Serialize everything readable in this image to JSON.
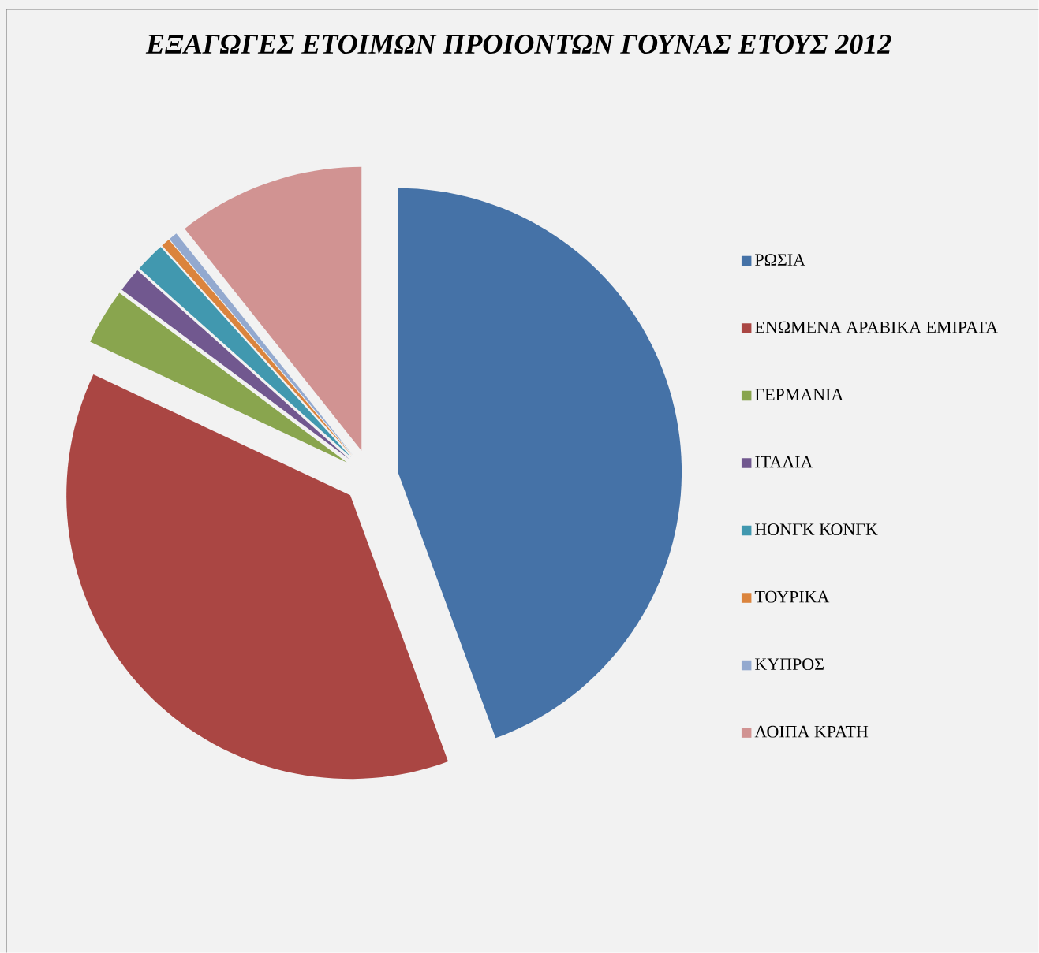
{
  "chart_data": {
    "type": "pie",
    "title": "ΕΞΑΓΩΓΕΣ ΕΤΟΙΜΩΝ ΠΡΟΙΟΝΤΩΝ ΓΟΥΝΑΣ ΕΤΟΥΣ 2012",
    "categories": [
      "ΡΩΣΙΑ",
      "ΕΝΩΜΕΝΑ ΑΡΑΒΙΚΑ ΕΜΙΡΑΤΑ",
      "ΓΕΡΜΑΝΙΑ",
      "ΙΤΑΛΙΑ",
      "ΗΟΝΓΚ ΚΟΝΓΚ",
      "ΤΟΥΡΙΚΑ",
      "ΚΥΠΡΟΣ",
      "ΛΟΙΠΑ ΚΡΑΤΗ"
    ],
    "values": [
      44.4,
      37.6,
      3.2,
      1.4,
      1.7,
      0.5,
      0.5,
      10.7
    ],
    "colors": [
      "#4572a7",
      "#aa4643",
      "#89a54e",
      "#71588f",
      "#4198af",
      "#db843d",
      "#93a9cf",
      "#d19392"
    ],
    "legend": "right"
  }
}
